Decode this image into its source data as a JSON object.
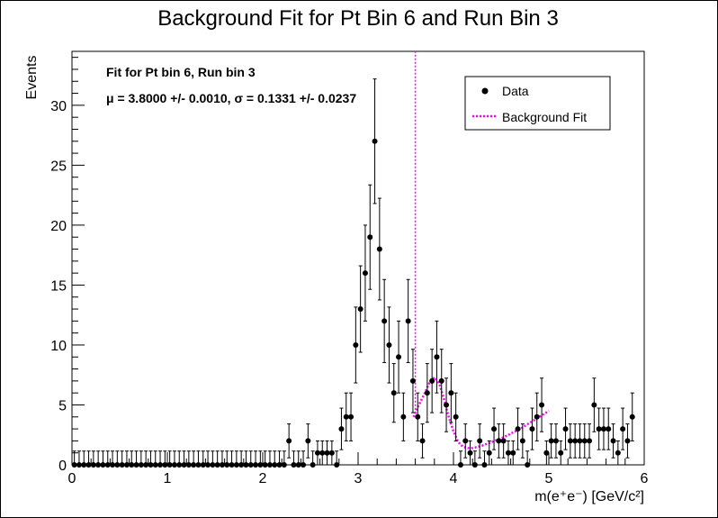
{
  "chart_data": {
    "type": "scatter",
    "title": "Background Fit for Pt Bin 6 and Run Bin 3",
    "xlabel": "m(e⁺e⁻) [GeV/c²]",
    "ylabel": "Events",
    "xlim": [
      0,
      6
    ],
    "ylim": [
      0,
      34.5
    ],
    "x_ticks": [
      "0",
      "1",
      "2",
      "3",
      "4",
      "5",
      "6"
    ],
    "y_ticks": [
      "0",
      "5",
      "10",
      "15",
      "20",
      "25",
      "30"
    ],
    "annotations": [
      "Fit for Pt bin 6, Run bin 3",
      "μ = 3.8000 +/- 0.0010, σ = 0.1331 +/- 0.0237"
    ],
    "legend": {
      "placement": "top-right",
      "entries": [
        {
          "label": "Data",
          "marker": "circle",
          "color": "#000000"
        },
        {
          "label": "Background Fit",
          "line": "dotted",
          "color": "#ff00ff"
        }
      ]
    },
    "series": [
      {
        "name": "Data",
        "bin_width": 0.05,
        "x_start": 0.025,
        "values": [
          0,
          0,
          0,
          0,
          0,
          0,
          0,
          0,
          0,
          0,
          0,
          0,
          0,
          0,
          0,
          0,
          0,
          0,
          0,
          0,
          0,
          0,
          0,
          0,
          0,
          0,
          0,
          0,
          0,
          0,
          0,
          0,
          0,
          0,
          0,
          0,
          0,
          0,
          0,
          0,
          0,
          0,
          0,
          0,
          0,
          2,
          0,
          0,
          0,
          2,
          0,
          1,
          1,
          1,
          1,
          0,
          3,
          4,
          4,
          10,
          13,
          16,
          19,
          27,
          18,
          12,
          10,
          6,
          9,
          4,
          12,
          7,
          4,
          2,
          6,
          7,
          9,
          7,
          5,
          6,
          4,
          0,
          2,
          1,
          0,
          2,
          0,
          1,
          3,
          2,
          2,
          1,
          1,
          3,
          2,
          0,
          3,
          4,
          5,
          1,
          2,
          2,
          1,
          3,
          2,
          2,
          2,
          2,
          2,
          5,
          3,
          3,
          3,
          2,
          1,
          3,
          2,
          4
        ]
      },
      {
        "name": "Background Fit",
        "x": [
          3.58,
          3.6,
          3.62,
          3.65,
          3.7,
          3.75,
          3.8,
          3.85,
          3.9,
          3.95,
          4.0,
          4.05,
          4.1,
          4.15,
          4.2,
          4.3,
          4.4,
          4.5,
          4.6,
          4.7,
          4.8,
          4.9,
          5.0
        ],
        "values": [
          4.0,
          4.3,
          4.7,
          5.2,
          6.0,
          6.9,
          7.3,
          6.8,
          5.5,
          4.0,
          2.8,
          1.9,
          1.5,
          1.4,
          1.4,
          1.6,
          1.9,
          2.2,
          2.6,
          3.0,
          3.5,
          4.0,
          4.5
        ]
      }
    ]
  }
}
